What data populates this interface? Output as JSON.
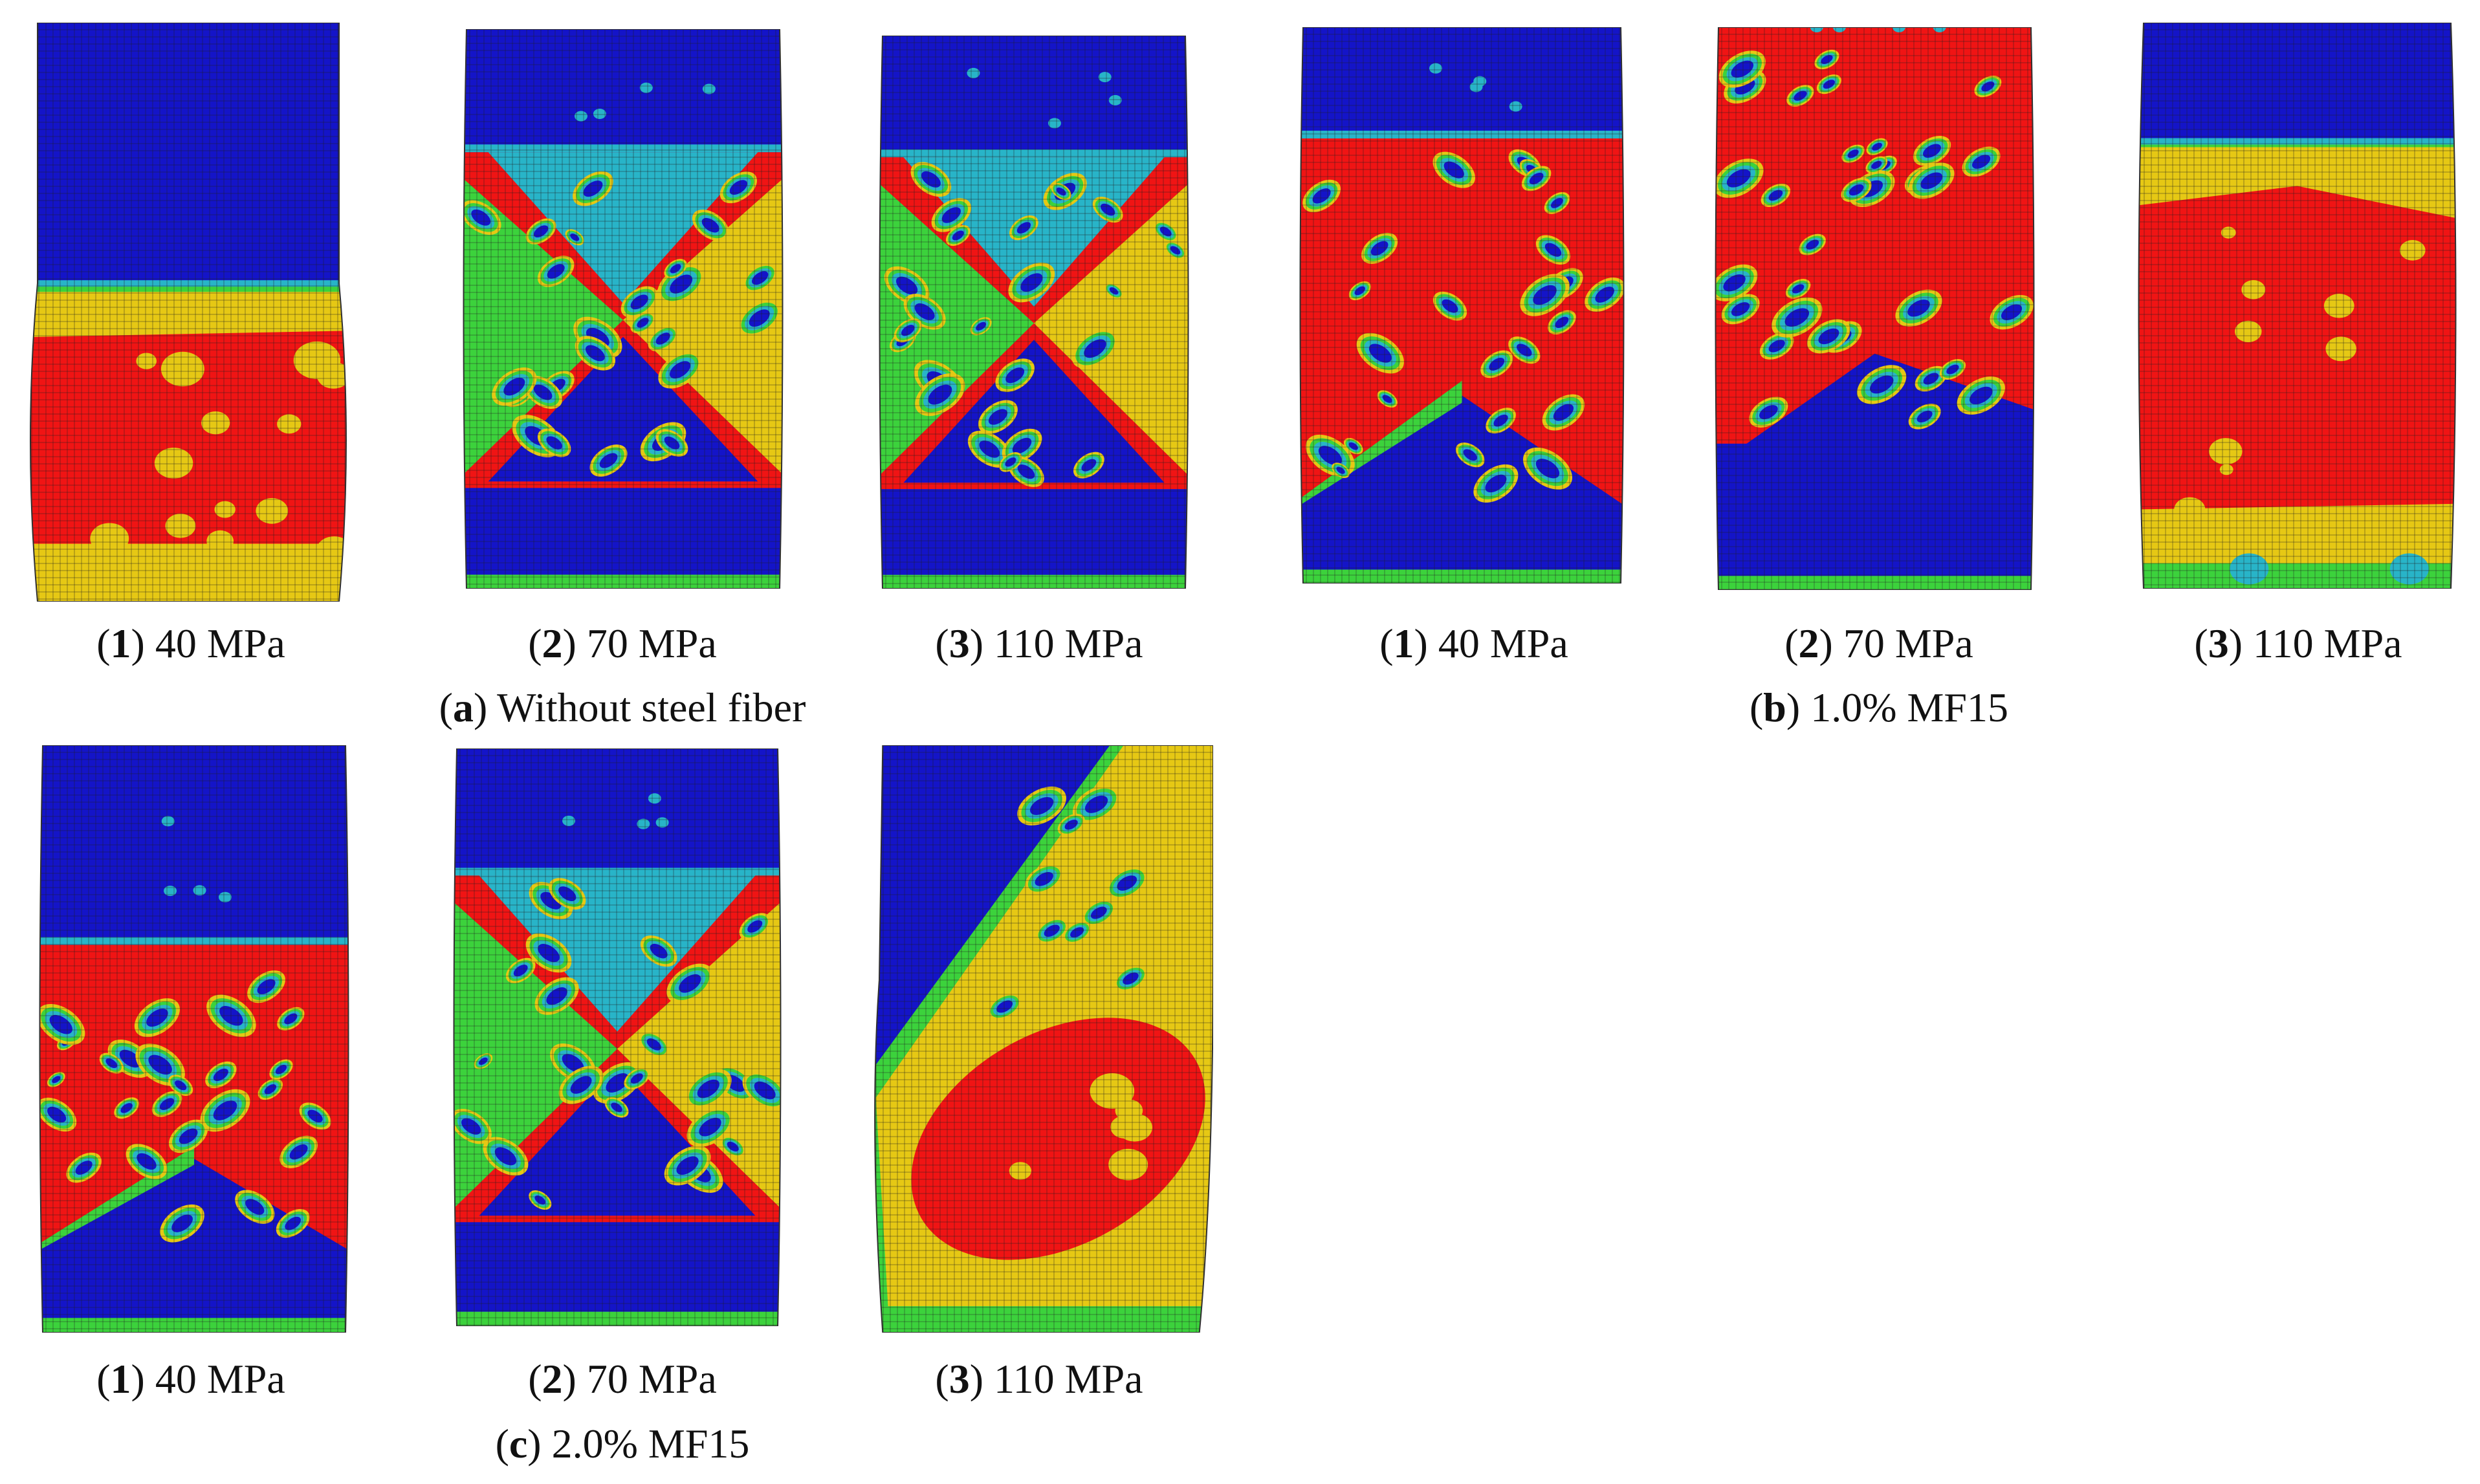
{
  "groups": [
    {
      "letter": "a",
      "label": "Without steel fiber",
      "specimens": [
        {
          "num": "1",
          "strength": "40 MPa",
          "mode": "lowerband"
        },
        {
          "num": "2",
          "strength": "70 MPa",
          "mode": "xcross"
        },
        {
          "num": "3",
          "strength": "110 MPa",
          "mode": "xcross"
        }
      ]
    },
    {
      "letter": "b",
      "label": "1.0% MF15",
      "specimens": [
        {
          "num": "1",
          "strength": "40 MPa",
          "mode": "hourglass"
        },
        {
          "num": "2",
          "strength": "70 MPa",
          "mode": "diagonal"
        },
        {
          "num": "3",
          "strength": "110 MPa",
          "mode": "bulge"
        }
      ]
    },
    {
      "letter": "c",
      "label": "2.0% MF15",
      "specimens": [
        {
          "num": "1",
          "strength": "40 MPa",
          "mode": "hourglass"
        },
        {
          "num": "2",
          "strength": "70 MPa",
          "mode": "xcross"
        },
        {
          "num": "3",
          "strength": "110 MPa",
          "mode": "shear"
        }
      ]
    }
  ],
  "colors": {
    "blue": "#1414c8",
    "cyan": "#28b4c8",
    "green": "#3cd23c",
    "yellow": "#e6c814",
    "red": "#f01414",
    "grid": "#202020"
  }
}
